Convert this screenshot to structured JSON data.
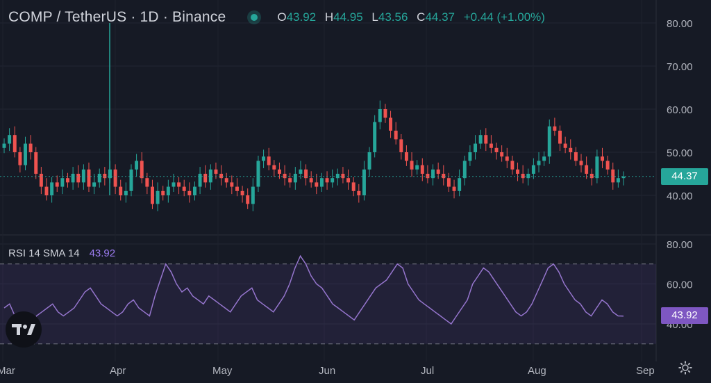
{
  "header": {
    "title": "COMP / TetherUS · 1D · Binance",
    "ohlc": {
      "o_label": "O",
      "o": "43.92",
      "h_label": "H",
      "h": "44.95",
      "l_label": "L",
      "l": "43.56",
      "c_label": "C",
      "c": "44.37",
      "change": "+0.44 (+1.00%)"
    }
  },
  "rsi_panel": {
    "label": "RSI 14 SMA 14",
    "value": "43.92",
    "upper": 70,
    "lower": 30
  },
  "last_price_badge": "44.37",
  "rsi_badge": "43.92",
  "colors": {
    "up": "#26a69a",
    "down": "#ef5350",
    "rsi": "#7e57c2",
    "background": "#161a25"
  },
  "icons": {
    "logo": "tradingview-logo-icon",
    "settings": "gear-icon"
  },
  "chart_data": [
    {
      "type": "candlestick",
      "x_ticks": [
        "Mar",
        "Apr",
        "May",
        "Jun",
        "Jul",
        "Aug",
        "Sep"
      ],
      "y_ticks": [
        "40.00",
        "50.00",
        "60.00",
        "70.00",
        "80.00"
      ],
      "ylim": [
        34,
        82
      ],
      "last_price": 44.37,
      "spikes": [
        {
          "date": "Apr 1",
          "high": 80
        }
      ],
      "series_close": [
        52,
        54,
        50,
        47,
        52,
        50,
        45,
        42,
        40,
        43,
        42,
        44,
        43,
        45,
        43,
        46,
        42,
        43,
        45,
        44,
        46,
        42,
        40,
        41,
        46,
        48,
        44,
        42,
        38,
        41,
        40,
        42,
        43,
        42,
        41,
        40,
        42,
        45,
        43,
        46,
        45,
        44,
        43,
        42,
        41,
        40,
        38,
        42,
        48,
        49,
        47,
        46,
        45,
        44,
        43,
        45,
        46,
        44,
        43,
        42,
        44,
        43,
        44,
        45,
        44,
        43,
        41,
        40,
        46,
        50,
        57,
        60,
        58,
        55,
        53,
        50,
        48,
        46,
        47,
        45,
        44,
        46,
        45,
        44,
        42,
        41,
        44,
        48,
        50,
        52,
        54,
        52,
        51,
        50,
        49,
        48,
        46,
        45,
        44,
        45,
        47,
        48,
        49,
        56,
        55,
        52,
        51,
        50,
        48,
        47,
        45,
        44,
        49,
        48,
        46,
        43,
        44,
        44.37
      ]
    },
    {
      "type": "line",
      "name": "RSI 14",
      "y_ticks": [
        "40.00",
        "60.00",
        "80.00"
      ],
      "ylim": [
        22,
        84
      ],
      "series": [
        48,
        50,
        44,
        42,
        40,
        38,
        44,
        46,
        48,
        50,
        46,
        44,
        46,
        48,
        52,
        56,
        58,
        54,
        50,
        48,
        46,
        44,
        46,
        50,
        52,
        48,
        46,
        44,
        54,
        62,
        70,
        66,
        60,
        56,
        58,
        54,
        52,
        50,
        54,
        52,
        50,
        48,
        46,
        50,
        54,
        56,
        58,
        52,
        50,
        48,
        46,
        50,
        54,
        60,
        68,
        74,
        70,
        64,
        60,
        58,
        54,
        50,
        48,
        46,
        44,
        42,
        46,
        50,
        54,
        58,
        60,
        62,
        66,
        70,
        68,
        60,
        56,
        52,
        50,
        48,
        46,
        44,
        42,
        40,
        44,
        48,
        52,
        60,
        64,
        68,
        66,
        62,
        58,
        54,
        50,
        46,
        44,
        46,
        50,
        56,
        62,
        68,
        70,
        66,
        60,
        56,
        52,
        50,
        46,
        44,
        48,
        52,
        50,
        46,
        44,
        43.92
      ]
    }
  ]
}
